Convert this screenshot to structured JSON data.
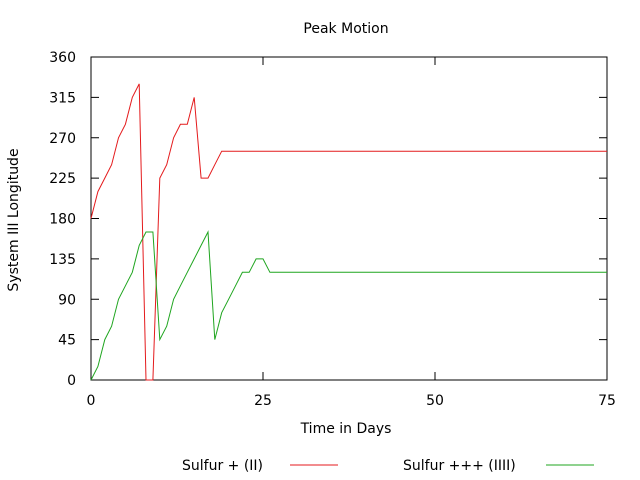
{
  "chart_data": {
    "type": "line",
    "title": "Peak Motion",
    "xlabel": "Time in Days",
    "ylabel": "System III Longitude",
    "xlim": [
      0,
      75
    ],
    "ylim": [
      0,
      360
    ],
    "xticks": [
      0,
      25,
      50,
      75
    ],
    "yticks": [
      0,
      45,
      90,
      135,
      180,
      225,
      270,
      315,
      360
    ],
    "grid": false,
    "legend_position": "bottom",
    "series": [
      {
        "name": "Sulfur + (II)",
        "color": "#e41a1c",
        "points": [
          [
            0,
            180
          ],
          [
            1,
            210
          ],
          [
            2,
            225
          ],
          [
            3,
            240
          ],
          [
            4,
            270
          ],
          [
            5,
            285
          ],
          [
            6,
            315
          ],
          [
            7,
            330
          ],
          [
            8,
            0
          ],
          [
            9,
            0
          ],
          [
            10,
            225
          ],
          [
            11,
            240
          ],
          [
            12,
            270
          ],
          [
            13,
            285
          ],
          [
            14,
            285
          ],
          [
            15,
            315
          ],
          [
            16,
            225
          ],
          [
            17,
            225
          ],
          [
            18,
            240
          ],
          [
            19,
            255
          ],
          [
            20,
            255
          ],
          [
            25,
            255
          ],
          [
            50,
            255
          ],
          [
            75,
            255
          ]
        ]
      },
      {
        "name": "Sulfur +++ (IIII)",
        "color": "#1fa51f",
        "points": [
          [
            0,
            0
          ],
          [
            1,
            15
          ],
          [
            2,
            45
          ],
          [
            3,
            60
          ],
          [
            4,
            90
          ],
          [
            5,
            105
          ],
          [
            6,
            120
          ],
          [
            7,
            150
          ],
          [
            8,
            165
          ],
          [
            9,
            165
          ],
          [
            10,
            45
          ],
          [
            11,
            60
          ],
          [
            12,
            90
          ],
          [
            13,
            105
          ],
          [
            14,
            120
          ],
          [
            15,
            135
          ],
          [
            16,
            150
          ],
          [
            17,
            165
          ],
          [
            18,
            45
          ],
          [
            19,
            75
          ],
          [
            20,
            90
          ],
          [
            21,
            105
          ],
          [
            22,
            120
          ],
          [
            23,
            120
          ],
          [
            24,
            135
          ],
          [
            25,
            135
          ],
          [
            26,
            120
          ],
          [
            27,
            120
          ],
          [
            50,
            120
          ],
          [
            75,
            120
          ]
        ]
      }
    ]
  }
}
